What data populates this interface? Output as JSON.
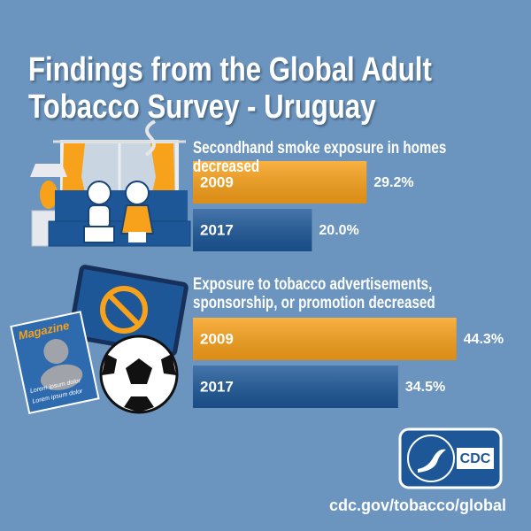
{
  "title": "Findings from the Global Adult Tobacco Survey - Uruguay",
  "footer": "cdc.gov/tobacco/global",
  "logo": "CDC",
  "illustration": {
    "magazine": "Magazine",
    "lines": [
      "Lorem ipsum dolor",
      "Lorem ipsum dolor"
    ]
  },
  "chart_data": [
    {
      "type": "bar",
      "orientation": "horizontal",
      "title": "Secondhand smoke exposure in homes decreased",
      "categories": [
        "2009",
        "2017"
      ],
      "values": [
        29.2,
        20.0
      ],
      "value_labels": [
        "29.2%",
        "20.0%"
      ],
      "colors": [
        "#f8a11a",
        "#1d5798"
      ]
    },
    {
      "type": "bar",
      "orientation": "horizontal",
      "title": "Exposure to tobacco advertisements, sponsorship, or promotion decreased",
      "categories": [
        "2009",
        "2017"
      ],
      "values": [
        44.3,
        34.5
      ],
      "value_labels": [
        "44.3%",
        "34.5%"
      ],
      "colors": [
        "#f8a11a",
        "#1d5798"
      ]
    }
  ]
}
